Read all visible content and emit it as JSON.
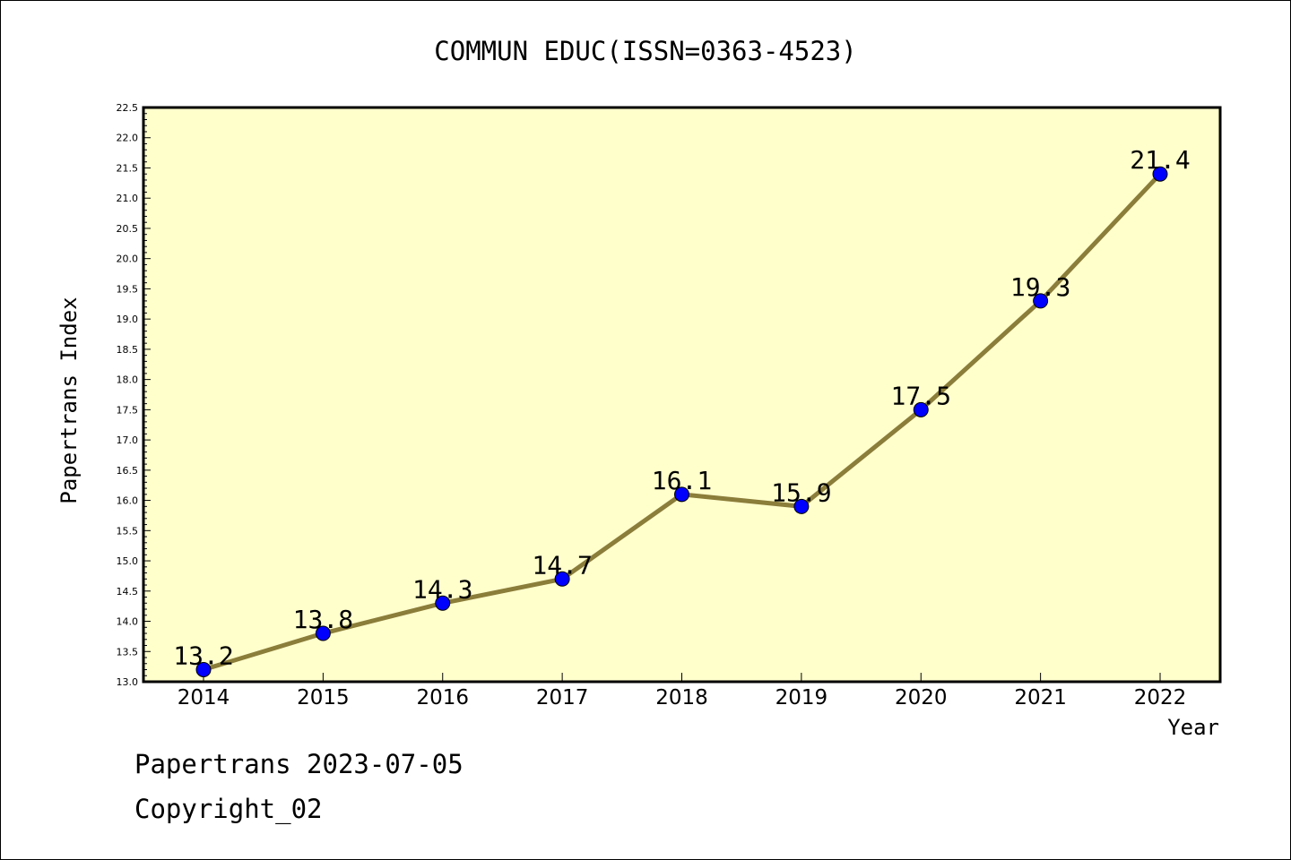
{
  "chart_data": {
    "type": "line",
    "title": "COMMUN EDUC(ISSN=0363-4523)",
    "xlabel": "Year",
    "ylabel": "Papertrans Index",
    "categories": [
      "2014",
      "2015",
      "2016",
      "2017",
      "2018",
      "2019",
      "2020",
      "2021",
      "2022"
    ],
    "series": [
      {
        "values": [
          13.2,
          13.8,
          14.3,
          14.7,
          16.1,
          15.9,
          17.5,
          19.3,
          21.4
        ],
        "labels": [
          "13.2",
          "13.8",
          "14.3",
          "14.7",
          "16.1",
          "15.9",
          "17.5",
          "19.3",
          "21.4"
        ]
      }
    ],
    "ylim": [
      13.0,
      22.5
    ],
    "ytick_step": 0.5,
    "ytick_labels": [
      "13.0",
      "13.5",
      "14.0",
      "14.5",
      "15.0",
      "15.5",
      "16.0",
      "16.5",
      "17.0",
      "17.5",
      "18.0",
      "18.5",
      "19.0",
      "19.5",
      "20.0",
      "20.5",
      "21.0",
      "21.5",
      "22.0",
      "22.5"
    ],
    "grid": false,
    "legend": "none",
    "colors": {
      "plot_background": "#ffffcc",
      "line": "#8b7d3a",
      "marker": "#0000ff"
    }
  },
  "footer": {
    "line1": "Papertrans 2023-07-05",
    "line2": "Copyright_02"
  }
}
